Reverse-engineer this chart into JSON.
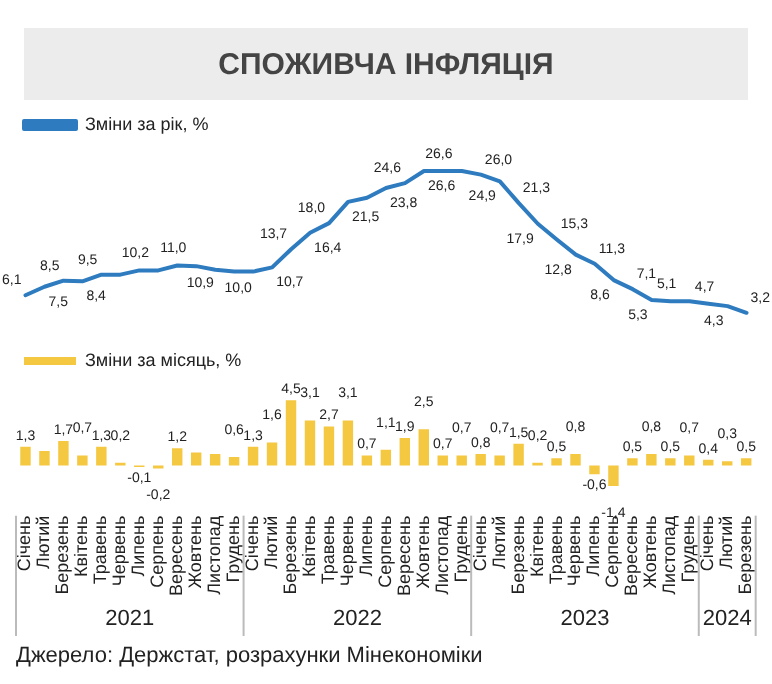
{
  "chart_data": [
    {
      "type": "line",
      "title": "СПОЖИВЧА ІНФЛЯЦІЯ",
      "categories": [
        null,
        null,
        null,
        null,
        null,
        null,
        null,
        null,
        null,
        null,
        null,
        null,
        null,
        null,
        null,
        null,
        null,
        null,
        null,
        null,
        null,
        null,
        null,
        null,
        null,
        null,
        null,
        null,
        null,
        null,
        null,
        null,
        null,
        null,
        null,
        null,
        null,
        null,
        null
      ],
      "series": [
        {
          "name": "Зміни за рік, %",
          "color": "#2e7cbf",
          "values": [
            6.1,
            7.5,
            8.5,
            8.4,
            9.5,
            9.5,
            10.2,
            10.2,
            11.0,
            10.9,
            10.3,
            10.0,
            10.0,
            10.7,
            13.7,
            16.4,
            18.0,
            21.5,
            22.2,
            23.8,
            24.6,
            26.6,
            26.6,
            26.6,
            26.0,
            24.9,
            21.3,
            17.9,
            15.3,
            12.8,
            11.3,
            8.6,
            7.1,
            5.3,
            5.1,
            5.1,
            4.7,
            4.3,
            3.2
          ],
          "value_labels": [
            "6,1",
            "7,5",
            "8,5",
            "8,4",
            "9,5",
            null,
            "10,2",
            null,
            "11,0",
            "10,9",
            null,
            "10,0",
            null,
            "10,7",
            "13,7",
            "16,4",
            "18,0",
            "21,5",
            null,
            "23,8",
            "24,6",
            "26,6",
            "26,6",
            null,
            "26,0",
            "24,9",
            "21,3",
            "17,9",
            "15,3",
            "12,8",
            "11,3",
            "8,6",
            "7,1",
            "5,3",
            "5,1",
            null,
            "4,7",
            "4,3",
            "3,2"
          ]
        }
      ],
      "legend": "top left",
      "tick_labels": false,
      "marker": "none",
      "line_style": "solid"
    },
    {
      "type": "bar",
      "categories": [
        "Січень",
        "Лютий",
        "Березень",
        "Квітень",
        "Травень",
        "Червень",
        "Липень",
        "Серпень",
        "Вересень",
        "Жовтень",
        "Листопад",
        "Грудень",
        "Січень",
        "Лютий",
        "Березень",
        "Квітень",
        "Травень",
        "Червень",
        "Липень",
        "Серпень",
        "Вересень",
        "Жовтень",
        "Листопад",
        "Грудень",
        "Січень",
        "Лютий",
        "Березень",
        "Квітень",
        "Травень",
        "Червень",
        "Липень",
        "Серпень",
        "Вересень",
        "Жовтень",
        "Листопад",
        "Грудень",
        "Січень",
        "Лютий",
        "Березень"
      ],
      "series": [
        {
          "name": "Зміни за місяць, %",
          "color": "#f5c842",
          "values": [
            1.3,
            1.0,
            1.7,
            0.7,
            1.3,
            0.2,
            -0.1,
            -0.2,
            1.2,
            0.9,
            0.8,
            0.6,
            1.3,
            1.6,
            4.5,
            3.1,
            2.7,
            3.1,
            0.7,
            1.1,
            1.9,
            2.5,
            0.7,
            0.7,
            0.8,
            0.7,
            1.5,
            0.2,
            0.5,
            0.8,
            -0.6,
            -1.4,
            0.5,
            0.8,
            0.5,
            0.7,
            0.4,
            0.3,
            0.5
          ],
          "value_labels": [
            "1,3",
            null,
            "1,7",
            "0,7",
            "1,3",
            "0,2",
            "-0,1",
            "-0,2",
            "1,2",
            null,
            null,
            "0,6",
            "1,3",
            "1,6",
            "4,5",
            "3,1",
            "2,7",
            "3,1",
            "0,7",
            "1,1",
            "1,9",
            "2,5",
            "0,7",
            "0,7",
            "0,8",
            "0,7",
            "1,5",
            "0,2",
            "0,5",
            "0,8",
            "-0,6",
            "-1,4",
            "0,5",
            "0,8",
            "0,5",
            "0,7",
            "0,4",
            "0,3",
            "0,5"
          ]
        }
      ],
      "annotations": [
        "2021",
        "2022",
        "2023",
        "2024",
        "Джерело: Держстат, розрахунки Мінекономіки"
      ],
      "legend": "top left",
      "tick_labels": "x"
    }
  ]
}
